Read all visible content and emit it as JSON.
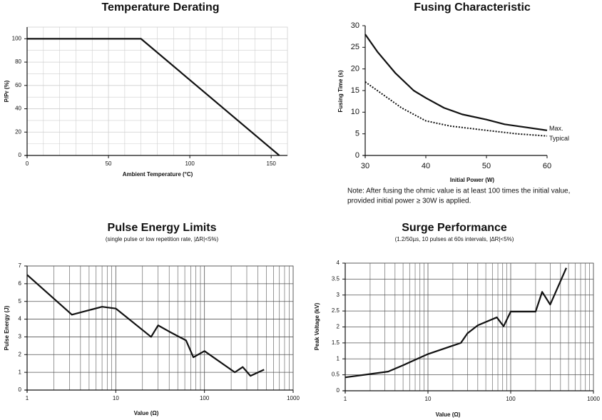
{
  "chart_data": [
    {
      "type": "line",
      "title": "Temperature Derating",
      "x_label": "Ambient Temperature (°C)",
      "y_label": "P/Pr (%)",
      "xlim": [
        0,
        160
      ],
      "ylim": [
        0,
        110
      ],
      "xticks": [
        0,
        50,
        100,
        150
      ],
      "yticks": [
        0,
        20,
        40,
        60,
        80,
        100
      ],
      "grid": true,
      "series": [
        {
          "name": null,
          "color": "#111111",
          "x": [
            0,
            70,
            155
          ],
          "values": [
            100,
            100,
            0
          ]
        }
      ]
    },
    {
      "type": "line",
      "title": "Fusing Characteristic",
      "x_label": "Initial Power (W)",
      "y_label": "Fusing Time (s)",
      "note": [
        "Note: After fusing the ohmic value is at least 100 times the initial value,",
        "provided initial power ≥ 30W is applied."
      ],
      "xlim": [
        30,
        60
      ],
      "ylim": [
        0,
        30
      ],
      "xticks": [
        30,
        40,
        50,
        60
      ],
      "yticks": [
        0,
        5,
        10,
        15,
        20,
        25,
        30
      ],
      "grid": false,
      "series": [
        {
          "name": "Max.",
          "color": "#111111",
          "line_style": "solid",
          "x": [
            30,
            32,
            35,
            38,
            40,
            43,
            46,
            50,
            53,
            56,
            60
          ],
          "values": [
            28,
            24,
            19,
            15,
            13.3,
            11,
            9.5,
            8.3,
            7.2,
            6.6,
            5.8
          ]
        },
        {
          "name": "Typical",
          "color": "#111111",
          "line_style": "dotted",
          "x": [
            30,
            33,
            36,
            40,
            44,
            50,
            55,
            60
          ],
          "values": [
            17,
            14,
            11,
            8,
            6.8,
            5.8,
            5,
            4.5
          ]
        }
      ]
    },
    {
      "type": "line",
      "title": "Pulse Energy Limits",
      "subtitle": "(single pulse or low repetition rate, |ΔR|<5%)",
      "x_label": "Value (Ω)",
      "y_label": "Pulse Energy (J)",
      "x_scale": "log",
      "xlim": [
        1,
        1000
      ],
      "ylim": [
        0,
        7
      ],
      "xticks": [
        1,
        10,
        100,
        1000
      ],
      "yticks": [
        0,
        1,
        2,
        3,
        4,
        5,
        6,
        7
      ],
      "grid": true,
      "series": [
        {
          "name": null,
          "color": "#111111",
          "x": [
            1,
            3.2,
            7,
            10,
            25,
            30,
            40,
            62,
            75,
            100,
            220,
            270,
            330,
            470
          ],
          "values": [
            6.5,
            4.25,
            4.7,
            4.6,
            3,
            3.65,
            3.3,
            2.8,
            1.85,
            2.2,
            1,
            1.3,
            0.8,
            1.15
          ]
        }
      ]
    },
    {
      "type": "line",
      "title": "Surge Performance",
      "subtitle": "(1.2/50µs, 10 pulses at 60s intervals, |ΔR|<5%)",
      "x_label": "Value (Ω)",
      "y_label": "Peak Voltage (kV)",
      "x_scale": "log",
      "xlim": [
        1,
        1000
      ],
      "ylim": [
        0,
        4
      ],
      "xticks": [
        1,
        10,
        100,
        1000
      ],
      "yticks": [
        0,
        0.5,
        1,
        1.5,
        2,
        2.5,
        3,
        3.5,
        4
      ],
      "grid": true,
      "series": [
        {
          "name": null,
          "color": "#111111",
          "x": [
            1,
            3.3,
            5,
            10,
            25,
            30,
            40,
            68,
            82,
            100,
            200,
            240,
            300,
            470
          ],
          "values": [
            0.42,
            0.6,
            0.8,
            1.15,
            1.5,
            1.8,
            2.05,
            2.3,
            2.02,
            2.48,
            2.48,
            3.1,
            2.7,
            3.85
          ]
        }
      ]
    }
  ]
}
